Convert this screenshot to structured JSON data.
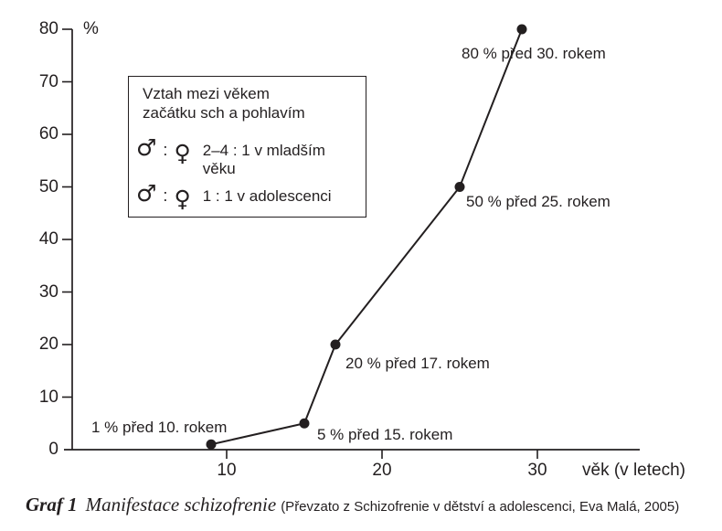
{
  "chart_data": {
    "type": "line",
    "title": "Manifestace schizofrenie",
    "x_label": "věk (v letech)",
    "y_unit": "%",
    "x_ticks": [
      10,
      20,
      30
    ],
    "y_ticks": [
      0,
      10,
      20,
      30,
      40,
      50,
      60,
      70,
      80
    ],
    "xlim": [
      0,
      36
    ],
    "ylim": [
      0,
      80
    ],
    "grid": false,
    "legend_position": "upper-left-inside",
    "marker": "filled-circle",
    "points": [
      {
        "age": 9,
        "percent": 1,
        "annotation": "1 % před 10. rokem"
      },
      {
        "age": 15,
        "percent": 5,
        "annotation": "5 % před 15. rokem"
      },
      {
        "age": 17,
        "percent": 20,
        "annotation": "20 % před 17. rokem"
      },
      {
        "age": 25,
        "percent": 50,
        "annotation": "50 % před 25. rokem"
      },
      {
        "age": 29,
        "percent": 80,
        "annotation": "80 % před 30. rokem"
      }
    ]
  },
  "legend": {
    "title_lines": [
      "Vztah mezi věkem",
      "začátku sch a pohlavím"
    ],
    "rows": [
      {
        "male_symbol": "♂",
        "separator": ":",
        "female_symbol": "♀",
        "text": "2–4 : 1 v mladším věku"
      },
      {
        "male_symbol": "♂",
        "separator": ":",
        "female_symbol": "♀",
        "text": "1 : 1 v adolescenci"
      }
    ]
  },
  "caption": {
    "label": "Graf 1",
    "title": "Manifestace schizofrenie",
    "source": "(Převzato z Schizofrenie v dětství a adolescenci, Eva Malá, 2005)"
  },
  "colors": {
    "ink": "#231f20",
    "background": "#ffffff"
  }
}
